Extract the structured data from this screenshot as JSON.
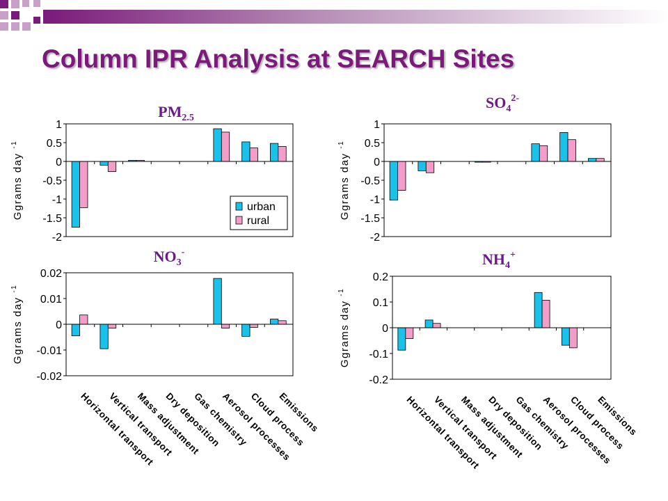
{
  "title": "Column IPR Analysis at SEARCH Sites",
  "colors": {
    "title": "#7c1a7c",
    "urban": "#19c2ea",
    "rural": "#f39ec8",
    "chart_heading": "#6b1a88",
    "deco_dark": "#7a1a7a",
    "deco_light": "#c8a0c8"
  },
  "shared": {
    "ylabel_main": "Ggrams day",
    "ylabel_sup": "-1"
  },
  "chart_data": [
    {
      "type": "bar",
      "heading": {
        "main": "PM",
        "sub": "2.5",
        "sup": ""
      },
      "categories": [
        "Horizontal transport",
        "Vertical transport",
        "Mass adjustment",
        "Dry deposition",
        "Gas chemistry",
        "Aerosol processes",
        "Cloud process",
        "Emissions"
      ],
      "series": [
        {
          "name": "urban",
          "values": [
            -1.75,
            -0.1,
            0.03,
            0,
            0,
            0.87,
            0.52,
            0.48
          ]
        },
        {
          "name": "rural",
          "values": [
            -1.23,
            -0.27,
            0.03,
            0,
            0,
            0.78,
            0.36,
            0.4
          ]
        }
      ],
      "ylim": [
        -2,
        1
      ],
      "yticks": [
        1,
        0.5,
        0,
        -0.5,
        -1,
        -1.5,
        -2
      ],
      "ytick_labels": [
        "1",
        "0.5",
        "0",
        "-0.5",
        "-1",
        "-1.5",
        "-2"
      ],
      "legend": [
        "urban",
        "rural"
      ],
      "legend_position": "bottom-right",
      "show_xlabels": false
    },
    {
      "type": "bar",
      "heading": {
        "main": "SO",
        "sub": "4",
        "sup": "2-"
      },
      "categories": [
        "Horizontal transport",
        "Vertical transport",
        "Mass adjustment",
        "Dry deposition",
        "Gas chemistry",
        "Aerosol processes",
        "Cloud process",
        "Emissions"
      ],
      "series": [
        {
          "name": "urban",
          "values": [
            -1.03,
            -0.25,
            0,
            -0.02,
            0,
            0.47,
            0.77,
            0.08
          ]
        },
        {
          "name": "rural",
          "values": [
            -0.77,
            -0.3,
            0,
            -0.02,
            0,
            0.42,
            0.58,
            0.08
          ]
        }
      ],
      "ylim": [
        -2,
        1
      ],
      "yticks": [
        1,
        0.5,
        0,
        -0.5,
        -1,
        -1.5,
        -2
      ],
      "ytick_labels": [
        "1",
        "0.5",
        "0",
        "-0.5",
        "-1",
        "-1.5",
        "-2"
      ],
      "show_xlabels": false
    },
    {
      "type": "bar",
      "heading": {
        "main": "NO",
        "sub": "3",
        "sup": "-"
      },
      "categories": [
        "Horizontal transport",
        "Vertical transport",
        "Mass adjustment",
        "Dry deposition",
        "Gas chemistry",
        "Aerosol processes",
        "Cloud process",
        "Emissions"
      ],
      "series": [
        {
          "name": "urban",
          "values": [
            -0.0045,
            -0.0095,
            0,
            0,
            0,
            0.0178,
            -0.0047,
            0.002
          ]
        },
        {
          "name": "rural",
          "values": [
            0.0036,
            -0.0015,
            0,
            0,
            0,
            -0.0015,
            -0.0012,
            0.0014
          ]
        }
      ],
      "ylim": [
        -0.02,
        0.02
      ],
      "yticks": [
        0.02,
        0.01,
        0,
        -0.01,
        -0.02
      ],
      "ytick_labels": [
        "0.02",
        "0.01",
        "0",
        "-0.01",
        "-0.02"
      ],
      "show_xlabels": true
    },
    {
      "type": "bar",
      "heading": {
        "main": "NH",
        "sub": "4",
        "sup": "+"
      },
      "categories": [
        "Horizontal transport",
        "Vertical transport",
        "Mass adjustment",
        "Dry deposition",
        "Gas chemistry",
        "Aerosol processes",
        "Cloud process",
        "Emissions"
      ],
      "series": [
        {
          "name": "urban",
          "values": [
            -0.087,
            0.03,
            0,
            0,
            0,
            0.137,
            -0.068,
            0
          ]
        },
        {
          "name": "rural",
          "values": [
            -0.042,
            0.017,
            0,
            0,
            0,
            0.107,
            -0.078,
            0
          ]
        }
      ],
      "ylim": [
        -0.2,
        0.2
      ],
      "yticks": [
        0.2,
        0.1,
        0,
        -0.1,
        -0.2
      ],
      "ytick_labels": [
        "0.2",
        "0.1",
        "0",
        "-0.1",
        "-0.2"
      ],
      "show_xlabels": true
    }
  ]
}
